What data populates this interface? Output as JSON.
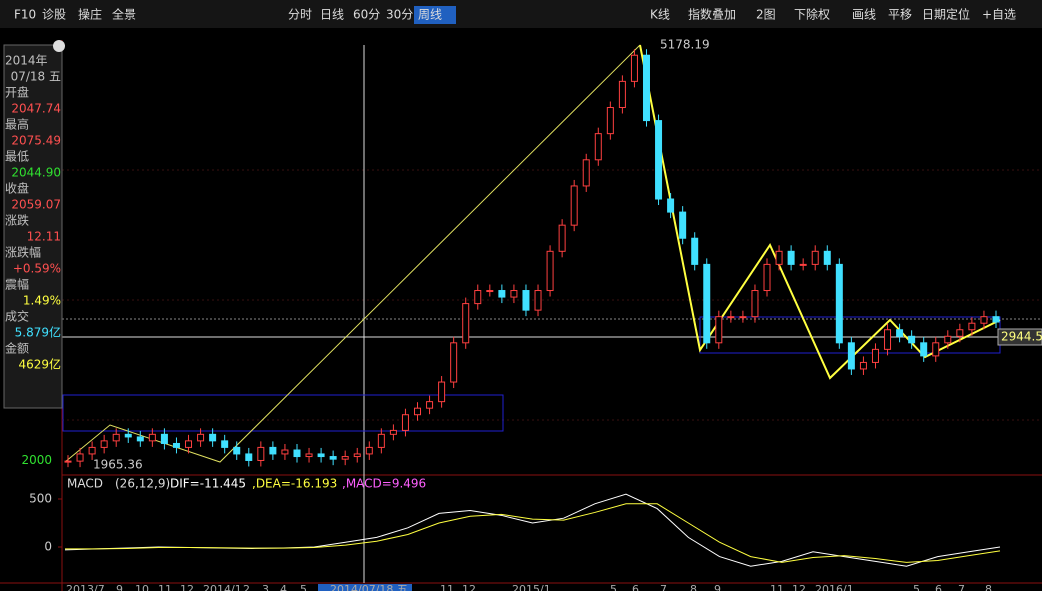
{
  "toolbar": {
    "left": [
      "F10",
      "诊股",
      "操庄",
      "全景"
    ],
    "periods": [
      "分时",
      "日线",
      "60分",
      "30分",
      "周线"
    ],
    "right": [
      "K线",
      "指数叠加",
      "2图",
      "下除权",
      "画线",
      "平移",
      "日期定位",
      "+自选"
    ]
  },
  "info_panel": {
    "rows": [
      {
        "label": "2014年",
        "value": "07/18 五",
        "color": "#c0c0c0"
      },
      {
        "label": "开盘",
        "value": "2047.74",
        "color": "#ff5050"
      },
      {
        "label": "最高",
        "value": "2075.49",
        "color": "#ff5050"
      },
      {
        "label": "最低",
        "value": "2044.90",
        "color": "#30e030"
      },
      {
        "label": "收盘",
        "value": "2059.07",
        "color": "#ff5050"
      },
      {
        "label": "涨跌",
        "value": "12.11",
        "color": "#ff5050"
      },
      {
        "label": "涨跌幅",
        "value": "+0.59%",
        "color": "#ff5050"
      },
      {
        "label": "震幅",
        "value": "1.49%",
        "color": "#ffff40"
      },
      {
        "label": "成交",
        "value": "5.879亿",
        "color": "#40e0ff"
      },
      {
        "label": "金额",
        "value": "4629亿",
        "color": "#ffff40"
      }
    ]
  },
  "price": {
    "high": 5178.19,
    "low": 1965.36,
    "current": 2944.5,
    "axis_label": 2000,
    "closes": [
      1995,
      2050,
      2100,
      2150,
      2200,
      2180,
      2150,
      2200,
      2130,
      2100,
      2150,
      2200,
      2150,
      2100,
      2050,
      2000,
      2100,
      2050,
      2080,
      2030,
      2050,
      2030,
      2010,
      2030,
      2050,
      2100,
      2200,
      2230,
      2350,
      2400,
      2450,
      2600,
      2900,
      3200,
      3300,
      3300,
      3250,
      3300,
      3150,
      3300,
      3600,
      3800,
      4100,
      4300,
      4500,
      4700,
      4900,
      5100,
      4600,
      4000,
      3900,
      3700,
      3500,
      2900,
      3100,
      3100,
      3100,
      3300,
      3500,
      3600,
      3500,
      3500,
      3600,
      3500,
      2900,
      2700,
      2750,
      2850,
      3000,
      2950,
      2900,
      2800,
      2900,
      2950,
      3000,
      3050,
      3100,
      3059
    ]
  },
  "macd": {
    "name": "MACD",
    "params": "(26,12,9)",
    "dif_text": "DIF=-11.445",
    "dea_text": ",DEA=-16.193",
    "macd_text": ",MACD=9.496",
    "yticks": [
      500,
      0
    ],
    "dif": [
      -30,
      -20,
      -10,
      0,
      -5,
      -10,
      -15,
      -10,
      0,
      50,
      100,
      200,
      350,
      380,
      330,
      250,
      300,
      450,
      550,
      400,
      100,
      -100,
      -200,
      -150,
      -50,
      -100,
      -150,
      -200,
      -100,
      -50,
      0
    ],
    "dea": [
      -20,
      -20,
      -15,
      -5,
      -5,
      -8,
      -12,
      -12,
      -5,
      20,
      60,
      130,
      250,
      320,
      340,
      290,
      280,
      360,
      450,
      450,
      250,
      50,
      -100,
      -160,
      -110,
      -90,
      -120,
      -160,
      -140,
      -90,
      -40
    ]
  },
  "dates": [
    "2013/7",
    "9",
    "10",
    "11",
    "12",
    "2014/1",
    "2",
    "3",
    "4",
    "5",
    "2014/07/18 五",
    "11",
    "12",
    "2015/1",
    "5",
    "6",
    "7",
    "8",
    "9",
    "11",
    "12",
    "2016/1",
    "5",
    "6",
    "7",
    "8"
  ]
}
